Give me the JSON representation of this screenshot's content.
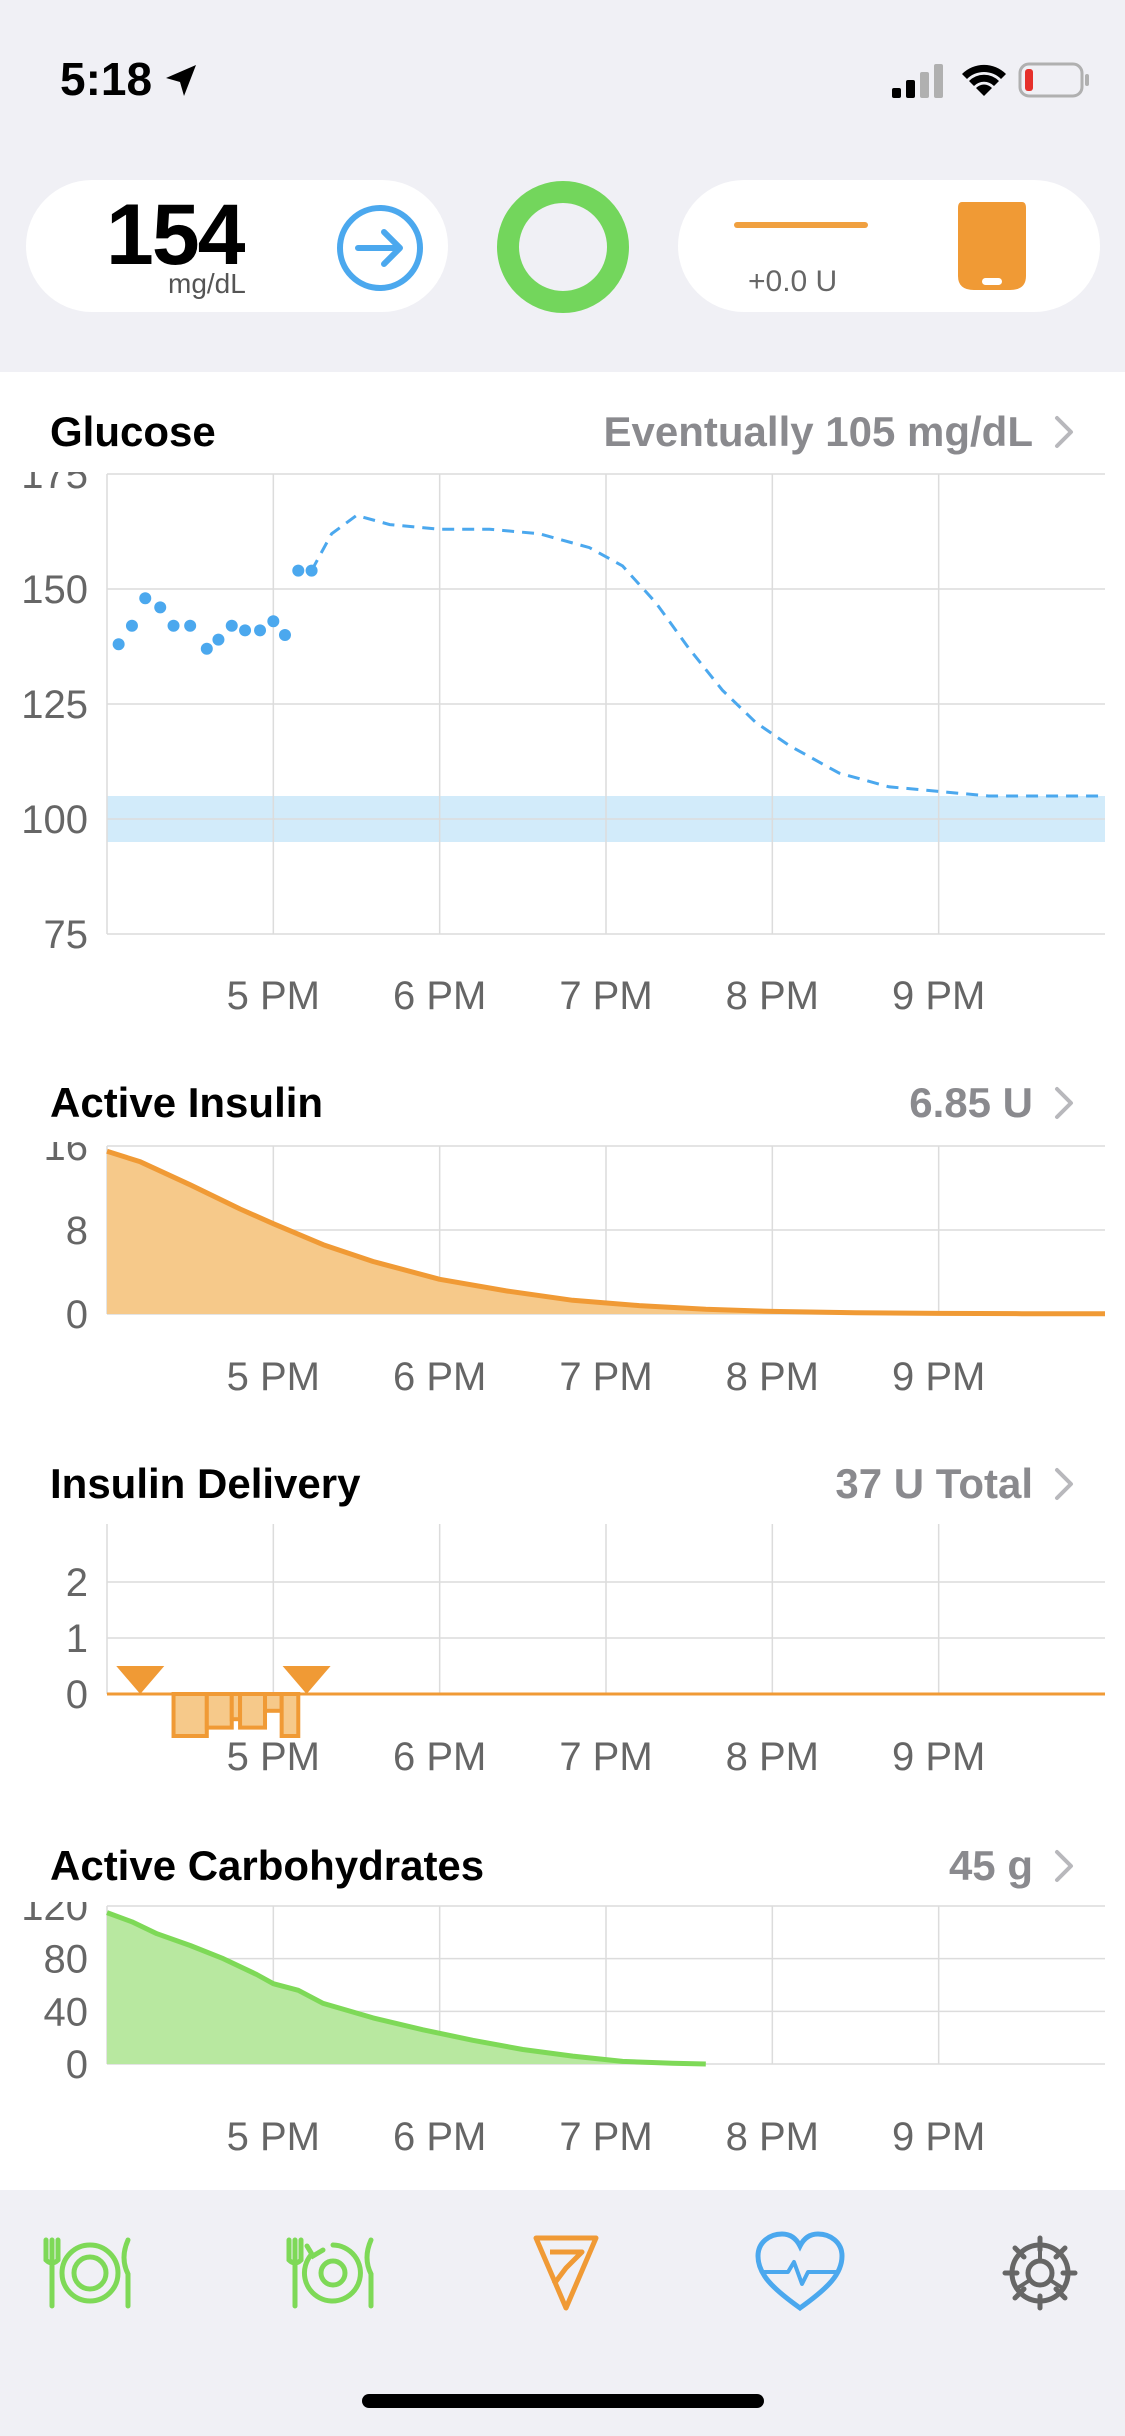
{
  "status_bar": {
    "time": "5:18"
  },
  "hud": {
    "glucose_value": "154",
    "glucose_unit": "mg/dL",
    "basal_rate": "+0.0 U"
  },
  "sections": {
    "glucose": {
      "title": "Glucose",
      "value": "Eventually 105 mg/dL"
    },
    "active_insulin": {
      "title": "Active Insulin",
      "value": "6.85 U"
    },
    "insulin_delivery": {
      "title": "Insulin Delivery",
      "value": "37 U Total"
    },
    "active_carbs": {
      "title": "Active Carbohydrates",
      "value": "45 g"
    }
  },
  "colors": {
    "glucose": "#4ba8ee",
    "target_range": "#d2ebfa",
    "insulin": "#f09a35",
    "insulin_fill": "#f6c98a",
    "carbs": "#7ed957",
    "carbs_fill": "#b8e8a0",
    "loop": "#73d65c",
    "grid": "#dcdcdc",
    "axis_text": "#666666"
  },
  "chart_data": [
    {
      "type": "scatter",
      "name_ref": "glucose",
      "x_ticks": [
        "5 PM",
        "6 PM",
        "7 PM",
        "8 PM",
        "9 PM"
      ],
      "y_ticks": [
        175,
        150,
        125,
        100,
        75
      ],
      "ylim": [
        75,
        175
      ],
      "xlim_hours": [
        16.0,
        22.0
      ],
      "target_range": [
        95,
        105
      ],
      "measured": {
        "x": [
          16.07,
          16.15,
          16.23,
          16.32,
          16.4,
          16.5,
          16.6,
          16.67,
          16.75,
          16.83,
          16.92,
          17.0,
          17.07,
          17.15,
          17.23
        ],
        "y": [
          138,
          142,
          148,
          146,
          142,
          142,
          137,
          139,
          142,
          141,
          141,
          143,
          140,
          154,
          154
        ]
      },
      "predicted": {
        "x": [
          17.23,
          17.35,
          17.5,
          17.7,
          18.0,
          18.3,
          18.6,
          18.9,
          19.1,
          19.3,
          19.5,
          19.7,
          19.9,
          20.1,
          20.4,
          20.7,
          21.0,
          21.3,
          21.6,
          22.0
        ],
        "y": [
          154,
          162,
          166,
          164,
          163,
          163,
          162,
          159,
          155,
          147,
          137,
          128,
          121,
          116,
          110,
          107,
          106,
          105,
          105,
          105
        ]
      }
    },
    {
      "type": "area",
      "name_ref": "active_insulin",
      "x_ticks": [
        "5 PM",
        "6 PM",
        "7 PM",
        "8 PM",
        "9 PM"
      ],
      "y_ticks": [
        16,
        8,
        0
      ],
      "ylim": [
        0,
        16
      ],
      "xlim_hours": [
        16.0,
        22.0
      ],
      "x": [
        16.0,
        16.2,
        16.5,
        16.8,
        17.0,
        17.3,
        17.6,
        18.0,
        18.4,
        18.8,
        19.2,
        19.6,
        20.0,
        20.5,
        21.0,
        21.5,
        22.0
      ],
      "y": [
        15.5,
        14.5,
        12.3,
        10.0,
        8.6,
        6.6,
        5.0,
        3.3,
        2.2,
        1.3,
        0.8,
        0.45,
        0.25,
        0.12,
        0.06,
        0.03,
        0.02
      ]
    },
    {
      "type": "bar",
      "name_ref": "insulin_delivery",
      "x_ticks": [
        "5 PM",
        "6 PM",
        "7 PM",
        "8 PM",
        "9 PM"
      ],
      "y_ticks": [
        2,
        1,
        0
      ],
      "ylim": [
        -1,
        2
      ],
      "xlim_hours": [
        16.0,
        22.0
      ],
      "temp_basal": [
        {
          "start": 16.4,
          "end": 16.6,
          "value": -0.75
        },
        {
          "start": 16.6,
          "end": 16.75,
          "value": -0.6
        },
        {
          "start": 16.75,
          "end": 16.8,
          "value": -0.45
        },
        {
          "start": 16.8,
          "end": 16.95,
          "value": -0.6
        },
        {
          "start": 16.95,
          "end": 17.05,
          "value": -0.3
        },
        {
          "start": 17.05,
          "end": 17.15,
          "value": -0.75
        }
      ],
      "boluses": [
        16.2,
        17.2
      ]
    },
    {
      "type": "area",
      "name_ref": "active_carbs",
      "x_ticks": [
        "5 PM",
        "6 PM",
        "7 PM",
        "8 PM",
        "9 PM"
      ],
      "y_ticks": [
        120,
        80,
        40,
        0
      ],
      "ylim": [
        0,
        120
      ],
      "xlim_hours": [
        16.0,
        22.0
      ],
      "x": [
        16.0,
        16.15,
        16.3,
        16.5,
        16.7,
        16.9,
        17.0,
        17.15,
        17.3,
        17.6,
        17.9,
        18.2,
        18.5,
        18.8,
        19.1,
        19.4,
        19.6
      ],
      "y": [
        115,
        108,
        99,
        90,
        80,
        68,
        61,
        56,
        46,
        35,
        26,
        18,
        11,
        6,
        2,
        0.5,
        0
      ]
    }
  ]
}
